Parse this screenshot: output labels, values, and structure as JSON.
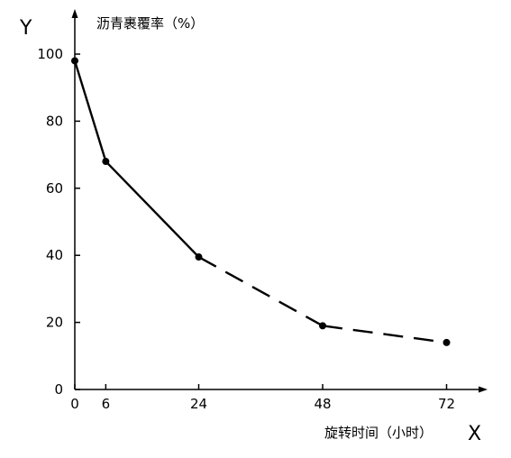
{
  "chart_data": {
    "type": "line",
    "title": "",
    "ylabel": "沥青裹覆率（%）",
    "xlabel": "旋转时间（小时）",
    "y_axis_letter": "Y",
    "x_axis_letter": "X",
    "x": [
      0,
      6,
      24,
      48,
      72
    ],
    "values": [
      98,
      68,
      39.5,
      19,
      14
    ],
    "segment_styles": [
      "solid",
      "solid",
      "dashed",
      "dashed"
    ],
    "xticks": [
      0,
      6,
      24,
      48,
      72
    ],
    "yticks": [
      0,
      20,
      40,
      60,
      80,
      100
    ],
    "xlim": [
      0,
      72
    ],
    "ylim": [
      0,
      100
    ],
    "grid": false,
    "legend": false,
    "line_color": "#000000"
  }
}
